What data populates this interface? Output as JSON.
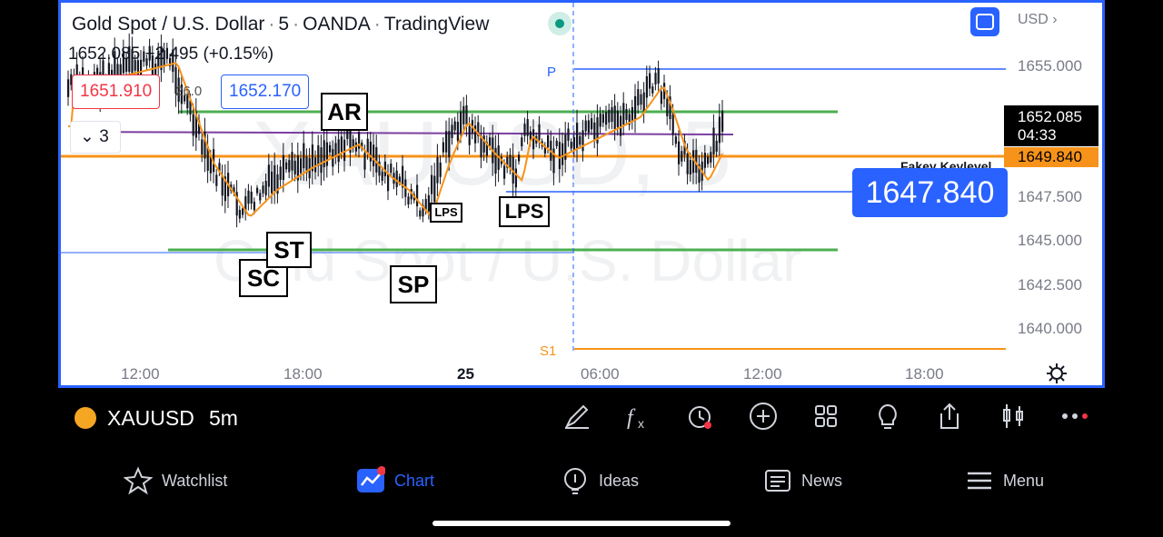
{
  "chart": {
    "title": "Gold Spot / U.S. Dollar",
    "interval": "5",
    "broker": "OANDA",
    "platform": "TradingView",
    "ohlc_price": "1652.085",
    "ohlc_change": "+2.495 (+0.15%)",
    "sell_price": "1651.910",
    "spread": "26.0",
    "buy_price": "1652.170",
    "indicator_count": "3",
    "watermark_symbol": "XAUUSD, 5",
    "watermark_name": "Gold Spot / U.S. Dollar",
    "currency": "USD",
    "price_scale": [
      "1655.000",
      "1647.500",
      "1645.000",
      "1642.500",
      "1640.000"
    ],
    "last_price": "1652.085",
    "countdown": "04:33",
    "orange_level": "1649.840",
    "fakey_label": "Fakey Keylevel",
    "fakey_price": "1647.840",
    "pivot_p": "P",
    "pivot_s1": "S1",
    "time_axis": [
      "12:00",
      "18:00",
      "25",
      "06:00",
      "12:00",
      "18:00"
    ],
    "annotations": [
      "AR",
      "SC",
      "ST",
      "SP",
      "LPS",
      "LPS"
    ],
    "colors": {
      "accent": "#2962ff",
      "sell": "#f23645",
      "orange": "#f7931a",
      "green": "#4caf50",
      "purple": "#7b3fa0"
    }
  },
  "toolbar": {
    "symbol": "XAUUSD",
    "interval": "5m",
    "tools": [
      "pencil-icon",
      "formula-icon",
      "alert-clock-icon",
      "add-icon",
      "grid-icon",
      "lightbulb-icon",
      "share-icon",
      "candles-icon",
      "more-icon"
    ]
  },
  "nav": {
    "watchlist": "Watchlist",
    "chart": "Chart",
    "ideas": "Ideas",
    "news": "News",
    "menu": "Menu"
  }
}
